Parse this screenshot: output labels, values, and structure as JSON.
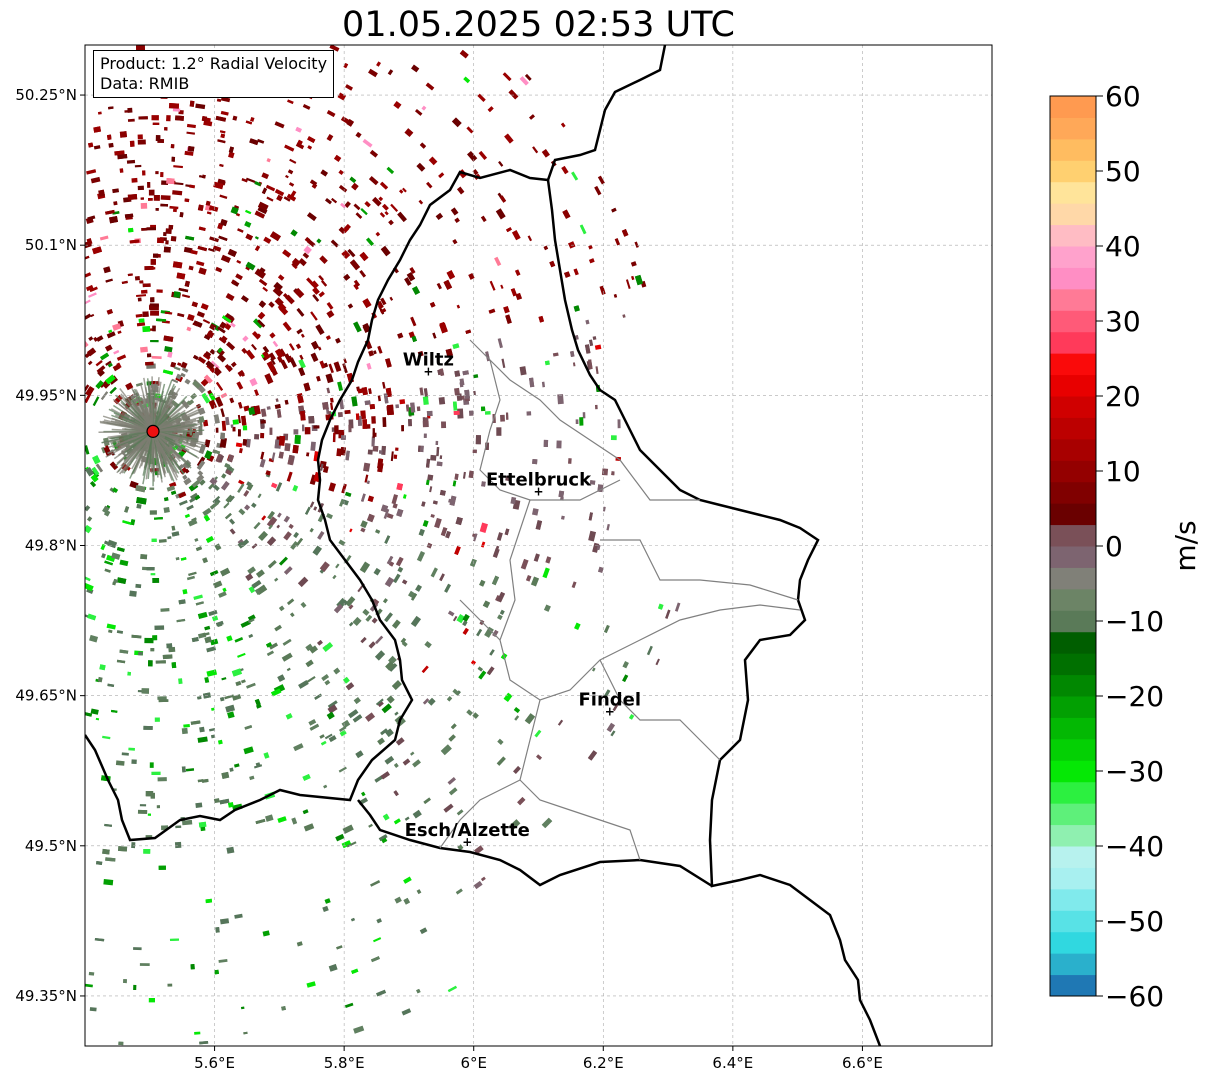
{
  "title": "01.05.2025 02:53 UTC",
  "info_box": {
    "product": "Product: 1.2° Radial Velocity",
    "data": "Data: RMIB"
  },
  "map": {
    "lon_range": [
      5.4,
      6.8
    ],
    "lat_range": [
      49.3,
      50.3
    ],
    "lon_ticks": [
      {
        "value": 5.6,
        "label": "5.6°E"
      },
      {
        "value": 5.8,
        "label": "5.8°E"
      },
      {
        "value": 6.0,
        "label": "6°E"
      },
      {
        "value": 6.2,
        "label": "6.2°E"
      },
      {
        "value": 6.4,
        "label": "6.4°E"
      },
      {
        "value": 6.6,
        "label": "6.6°E"
      }
    ],
    "lat_ticks": [
      {
        "value": 50.25,
        "label": "50.25°N"
      },
      {
        "value": 50.1,
        "label": "50.1°N"
      },
      {
        "value": 49.95,
        "label": "49.95°N"
      },
      {
        "value": 49.8,
        "label": "49.8°N"
      },
      {
        "value": 49.65,
        "label": "49.65°N"
      },
      {
        "value": 49.5,
        "label": "49.5°N"
      },
      {
        "value": 49.35,
        "label": "49.35°N"
      }
    ],
    "grid": true,
    "radar_site": {
      "lon": 5.505,
      "lat": 49.914
    },
    "cities": [
      {
        "name": "Wiltz",
        "lon": 5.93,
        "lat": 49.97
      },
      {
        "name": "Ettelbruck",
        "lon": 6.1,
        "lat": 49.85
      },
      {
        "name": "Findel",
        "lon": 6.21,
        "lat": 49.63
      },
      {
        "name": "Esch/Alzette",
        "lon": 5.99,
        "lat": 49.5
      }
    ]
  },
  "colorbar": {
    "label": "m/s",
    "min": -60,
    "max": 60,
    "ticks": [
      {
        "value": 60,
        "label": "60"
      },
      {
        "value": 50,
        "label": "50"
      },
      {
        "value": 40,
        "label": "40"
      },
      {
        "value": 30,
        "label": "30"
      },
      {
        "value": 20,
        "label": "20"
      },
      {
        "value": 10,
        "label": "10"
      },
      {
        "value": 0,
        "label": "0"
      },
      {
        "value": -10,
        "label": "−10"
      },
      {
        "value": -20,
        "label": "−20"
      },
      {
        "value": -30,
        "label": "−30"
      },
      {
        "value": -40,
        "label": "−40"
      },
      {
        "value": -50,
        "label": "−50"
      },
      {
        "value": -60,
        "label": "−60"
      }
    ],
    "colors": [
      "#1f78b4",
      "#2ab0cc",
      "#30d8e0",
      "#58e2e6",
      "#80eaec",
      "#a8f0f0",
      "#b7f2ee",
      "#8ff0b0",
      "#5ef07a",
      "#2cf040",
      "#05e805",
      "#04d004",
      "#03b803",
      "#02a002",
      "#018801",
      "#007000",
      "#005e00",
      "#5a7a58",
      "#6c8466",
      "#808078",
      "#7d6470",
      "#7a5058",
      "#6a0000",
      "#800000",
      "#940000",
      "#a80000",
      "#bc0000",
      "#d00000",
      "#e80000",
      "#fa0a0a",
      "#ff3a5a",
      "#ff5a78",
      "#ff7a96",
      "#ff8ec4",
      "#ffa2cc",
      "#ffbcc4",
      "#ffd8a8",
      "#ffe49a",
      "#ffd070",
      "#ffbc60",
      "#ffa858",
      "#ff9a50"
    ]
  }
}
